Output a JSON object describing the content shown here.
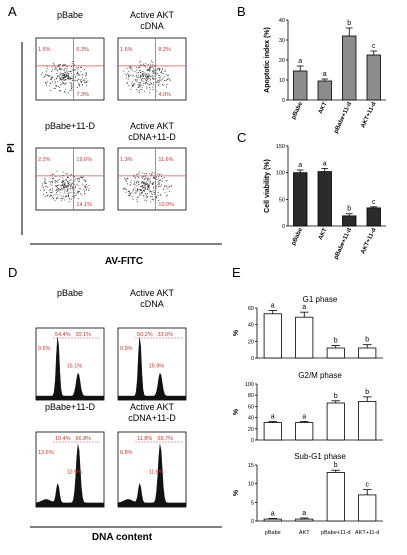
{
  "panels": {
    "A": {
      "letter": "A",
      "y_axis_label": "PI",
      "x_axis_label": "AV-FITC",
      "plots": [
        {
          "title_lines": [
            "pBabe"
          ],
          "ul": "1.5%",
          "ur": "6.3%",
          "ll": "",
          "lr": "7.3%"
        },
        {
          "title_lines": [
            "Active AKT",
            "cDNA"
          ],
          "ul": "1.6%",
          "ur": "8.2%",
          "ll": "",
          "lr": "4.0%"
        },
        {
          "title_lines": [
            "pBabe+11-D"
          ],
          "ul": "2.2%",
          "ur": "19.6%",
          "ll": "",
          "lr": "14.1%"
        },
        {
          "title_lines": [
            "Active AKT",
            "cDNA+11-D"
          ],
          "ul": "1.3%",
          "ur": "11.6%",
          "ll": "",
          "lr": "10.9%"
        }
      ]
    },
    "D": {
      "letter": "D",
      "x_axis_label": "DNA content",
      "plots": [
        {
          "title_lines": [
            "pBabe"
          ],
          "g1": "54.4%",
          "g2m": "30.1%",
          "sub_g1": "0.5%",
          "s": "15.1%"
        },
        {
          "title_lines": [
            "Active AKT",
            "cDNA"
          ],
          "g1": "50.2%",
          "g2m": "33.0%",
          "sub_g1": "0.9%",
          "s": "15.9%"
        },
        {
          "title_lines": [
            "pBabe+11-D"
          ],
          "g1": "10.4%",
          "g2m": "66.8%",
          "sub_g1": "13.6%",
          "s": "12.5%"
        },
        {
          "title_lines": [
            "Active AKT",
            "cDNA+11-D"
          ],
          "g1": "11.8%",
          "g2m": "69.7%",
          "sub_g1": "6.8%",
          "s": "11.6%"
        }
      ]
    }
  },
  "chart_data": [
    {
      "panel": "B",
      "type": "bar",
      "title": "",
      "xlabel": "",
      "ylabel": "Apoptotic index (%)",
      "categories": [
        "pBabe",
        "AKT",
        "pBabe+11-d",
        "AKT+11-d"
      ],
      "values": [
        14.5,
        9.5,
        32,
        22.5
      ],
      "errors": [
        2.5,
        1,
        4,
        2
      ],
      "significance": [
        "a",
        "a",
        "b",
        "c"
      ],
      "ylim": [
        0,
        40
      ],
      "yticks": [
        0,
        10,
        20,
        30,
        40
      ],
      "bar_fill": "#8c8c8c"
    },
    {
      "panel": "C",
      "type": "bar",
      "title": "",
      "xlabel": "",
      "ylabel": "Cell viability (%)",
      "categories": [
        "pBabe",
        "AKT",
        "pBabe+11-d",
        "AKT+11-d"
      ],
      "values": [
        100,
        102,
        19,
        34
      ],
      "errors": [
        5,
        6,
        4,
        2
      ],
      "significance": [
        "a",
        "a",
        "b",
        "c"
      ],
      "ylim": [
        0,
        150
      ],
      "yticks": [
        0,
        50,
        100,
        150
      ],
      "bar_fill": "#2b2b2b"
    },
    {
      "panel": "E",
      "type": "bar",
      "title": "G1 phase",
      "xlabel": "",
      "ylabel": "%",
      "categories": [
        "pBabe",
        "AKT",
        "pBabe+11-d",
        "AKT+11-d"
      ],
      "values": [
        53,
        49,
        12,
        12
      ],
      "errors": [
        4,
        6,
        3,
        4
      ],
      "significance": [
        "a",
        "a",
        "b",
        "b"
      ],
      "ylim": [
        0,
        60
      ],
      "yticks": [
        0,
        20,
        40,
        60
      ],
      "bar_fill": "#ffffff"
    },
    {
      "panel": "E",
      "type": "bar",
      "title": "G2/M phase",
      "xlabel": "",
      "ylabel": "%",
      "categories": [
        "pBabe",
        "AKT",
        "pBabe+11-d",
        "AKT+11-d"
      ],
      "values": [
        31,
        31,
        66,
        69
      ],
      "errors": [
        2,
        2,
        4,
        8
      ],
      "significance": [
        "a",
        "a",
        "b",
        "b"
      ],
      "ylim": [
        0,
        100
      ],
      "yticks": [
        0,
        20,
        40,
        60,
        80,
        100
      ],
      "bar_fill": "#ffffff"
    },
    {
      "panel": "E",
      "type": "bar",
      "title": "Sub-G1 phase",
      "xlabel": "",
      "ylabel": "%",
      "categories": [
        "pBabe",
        "AKT",
        "pBabe+11-d",
        "AKT+11-d"
      ],
      "values": [
        0.5,
        0.5,
        13,
        7
      ],
      "errors": [
        0.2,
        0.3,
        0.6,
        1.4
      ],
      "significance": [
        "a",
        "a",
        "b",
        "c"
      ],
      "ylim": [
        0,
        15
      ],
      "yticks": [
        0,
        5,
        10,
        15
      ],
      "show_x_labels": true,
      "bar_fill": "#ffffff"
    }
  ]
}
